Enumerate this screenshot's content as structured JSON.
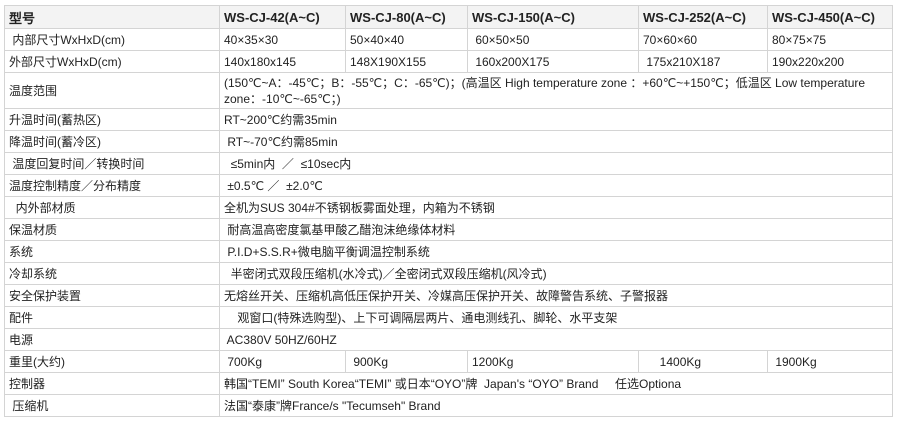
{
  "table": {
    "header": {
      "label": "型号",
      "models": [
        "WS-CJ-42(A~C)",
        "WS-CJ-80(A~C)",
        "WS-CJ-150(A~C)",
        "WS-CJ-252(A~C)",
        "WS-CJ-450(A~C)"
      ]
    },
    "rows": [
      {
        "label": " 内部尺寸WxHxD(cm)",
        "cells": [
          "40×35×30",
          "50×40×40",
          " 60×50×50",
          "70×60×60",
          "80×75×75"
        ]
      },
      {
        "label": "外部尺寸WxHxD(cm)",
        "cells": [
          "140x180x145",
          "148X190X155",
          " 160x200X175",
          " 175x210X187",
          "190x220x200"
        ]
      },
      {
        "label": "温度范围",
        "span": " (150℃~A：-45℃；B：-55℃；C：-65℃)；(高温区  High temperature zone ：+60℃~+150℃；低温区  Low temperature zone：-10℃~-65℃；)",
        "tall": true
      },
      {
        "label": "升温时间(蓄热区)",
        "span": "RT~200℃约需35min"
      },
      {
        "label": "降温时间(蓄冷区)",
        "span": " RT~-70℃约需85min"
      },
      {
        "label": " 温度回复时间／转换时间",
        "span": "  ≤5min内  ／  ≤10sec内"
      },
      {
        "label": "温度控制精度／分布精度",
        "span": " ±0.5℃ ／  ±2.0℃"
      },
      {
        "label": "  内外部材质",
        "span": "全机为SUS 304#不锈钢板雾面处理，内箱为不锈钢"
      },
      {
        "label": "保温材质",
        "span": " 耐高温高密度氯基甲酸乙醋泡沫绝缘体材料"
      },
      {
        "label": "系统",
        "span": " P.I.D+S.S.R+微电脑平衡调温控制系统"
      },
      {
        "label": "冷却系统",
        "span": "  半密闭式双段压缩机(水冷式)／全密闭式双段压缩机(风冷式)"
      },
      {
        "label": "安全保护装置",
        "span": "无熔丝开关、压缩机高低压保护开关、冷媒高压保护开关、故障警告系统、子警报器"
      },
      {
        "label": "配件",
        "span": "    观窗口(特殊选购型)、上下可调隔层两片、通电测线孔、脚轮、水平支架"
      },
      {
        "label": "电源",
        "span": " AC380V 50HZ/60HZ"
      },
      {
        "label": "重里(大约)",
        "cells": [
          " 700Kg",
          " 900Kg",
          "1200Kg",
          "     1400Kg",
          " 1900Kg"
        ]
      },
      {
        "label": "控制器",
        "span": "韩国“TEMI” South Korea“TEMI” 或日本“OYO”牌  Japan's “OYO” Brand     任选Optiona"
      },
      {
        "label": " 压缩机",
        "span": "法国“泰康”牌France/s \"Tecumseh\" Brand"
      }
    ]
  }
}
